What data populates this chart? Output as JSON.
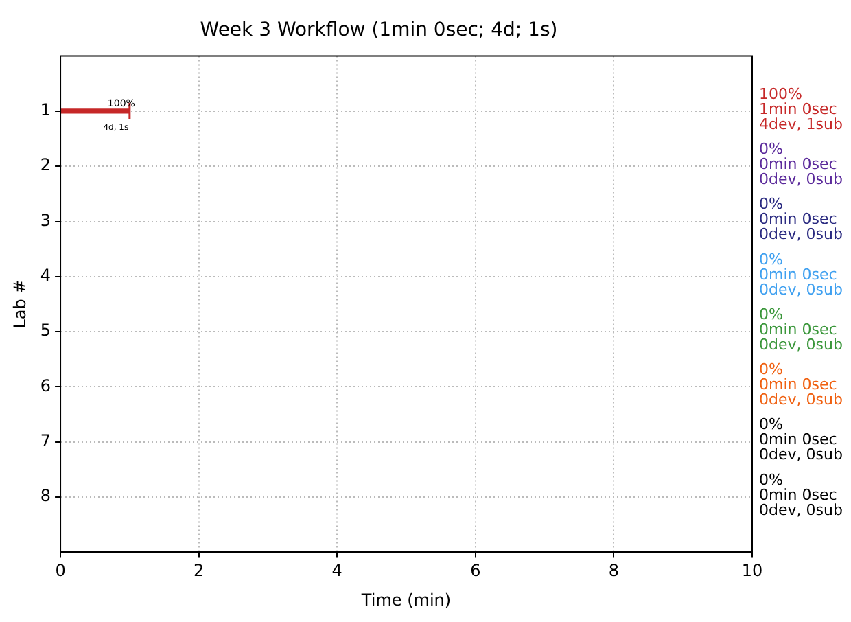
{
  "chart_data": {
    "type": "bar",
    "orientation": "horizontal",
    "title": "Week 3 Workflow (1min 0sec; 4d; 1s)",
    "xlabel": "Time (min)",
    "ylabel": "Lab #",
    "categories": [
      "1",
      "2",
      "3",
      "4",
      "5",
      "6",
      "7",
      "8"
    ],
    "values": [
      1,
      0,
      0,
      0,
      0,
      0,
      0,
      0
    ],
    "colors": [
      "#c62828",
      "#5b2a9b",
      "#2a2a80",
      "#3fa0f0",
      "#3a963a",
      "#f06010",
      "#000000",
      "#000000"
    ],
    "value_labels": [
      "100%",
      null,
      null,
      null,
      null,
      null,
      null,
      null
    ],
    "annotations": [
      {
        "text": "4d, 1s",
        "x": 1,
        "y": "1"
      },
      "100%\n1min 0sec\n4dev, 1sub",
      "0%\n0min 0sec\n0dev, 0sub",
      "0%\n0min 0sec\n0dev, 0sub",
      "0%\n0min 0sec\n0dev, 0sub",
      "0%\n0min 0sec\n0dev, 0sub",
      "0%\n0min 0sec\n0dev, 0sub",
      "0%\n0min 0sec\n0dev, 0sub",
      "0%\n0min 0sec\n0dev, 0sub"
    ],
    "xlim": [
      0,
      10
    ],
    "xticks": [
      0,
      2,
      4,
      6,
      8,
      10
    ],
    "grid": true,
    "legend": false
  }
}
